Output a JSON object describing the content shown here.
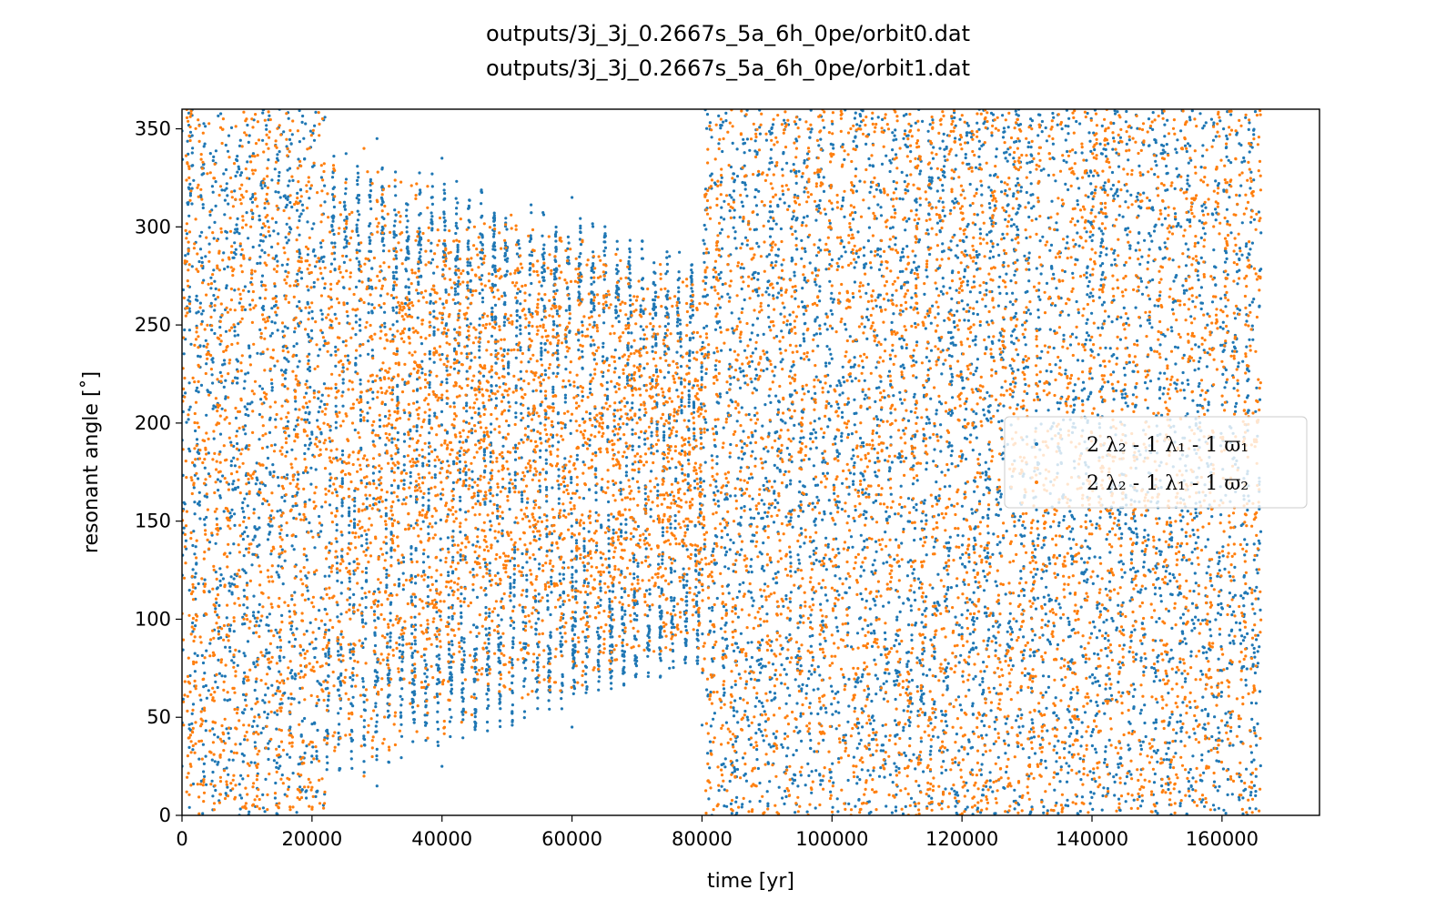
{
  "chart_data": {
    "type": "scatter",
    "title_lines": [
      "outputs/3j_3j_0.2667s_5a_6h_0pe/orbit0.dat",
      "outputs/3j_3j_0.2667s_5a_6h_0pe/orbit1.dat"
    ],
    "xlabel": "time [yr]",
    "ylabel": "resonant angle [˚]",
    "xlim": [
      0,
      175000
    ],
    "ylim": [
      0,
      360
    ],
    "xticks": [
      0,
      20000,
      40000,
      60000,
      80000,
      100000,
      120000,
      140000,
      160000
    ],
    "yticks": [
      0,
      50,
      100,
      150,
      200,
      250,
      300,
      350
    ],
    "grid": false,
    "legend_placement": "center-right",
    "data_end_x": 166000,
    "series": [
      {
        "name": "2 λ₂ - 1 λ₁ - 1 ϖ₁",
        "color": "#1f77b4",
        "phases": [
          {
            "x_range": [
              0,
              22000
            ],
            "behavior": "circulating",
            "y_range": [
              0,
              360
            ]
          },
          {
            "x_range": [
              22000,
              80000
            ],
            "behavior": "librating",
            "center": 180,
            "amplitude_start": 165,
            "amplitude_end": 105
          },
          {
            "x_range": [
              80000,
              166000
            ],
            "behavior": "circulating",
            "y_range": [
              0,
              360
            ]
          }
        ],
        "representative_points": [
          {
            "x": 30000,
            "y": 15
          },
          {
            "x": 30000,
            "y": 345
          },
          {
            "x": 40000,
            "y": 25
          },
          {
            "x": 40000,
            "y": 335
          },
          {
            "x": 60000,
            "y": 45
          },
          {
            "x": 60000,
            "y": 315
          },
          {
            "x": 75000,
            "y": 75
          },
          {
            "x": 75000,
            "y": 285
          }
        ]
      },
      {
        "name": "2 λ₂ - 1 λ₁ - 1 ϖ₂",
        "color": "#ff7f0e",
        "phases": [
          {
            "x_range": [
              0,
              22000
            ],
            "behavior": "circulating",
            "y_range": [
              0,
              360
            ]
          },
          {
            "x_range": [
              22000,
              80000
            ],
            "behavior": "librating",
            "center": 180,
            "amplitude_start": 160,
            "amplitude_end": 95
          },
          {
            "x_range": [
              80000,
              166000
            ],
            "behavior": "circulating",
            "y_range": [
              0,
              360
            ]
          }
        ],
        "representative_points": [
          {
            "x": 28000,
            "y": 20
          },
          {
            "x": 28000,
            "y": 340
          },
          {
            "x": 45000,
            "y": 60
          },
          {
            "x": 45000,
            "y": 300
          },
          {
            "x": 65000,
            "y": 85
          },
          {
            "x": 65000,
            "y": 275
          },
          {
            "x": 100000,
            "y": 270
          },
          {
            "x": 120000,
            "y": 90
          }
        ]
      }
    ]
  }
}
